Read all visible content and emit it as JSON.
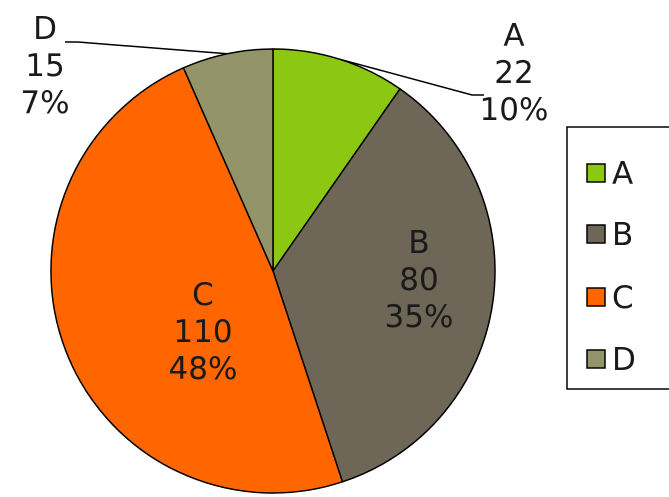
{
  "chart_data": {
    "type": "pie",
    "categories": [
      "A",
      "B",
      "C",
      "D"
    ],
    "values": [
      22,
      80,
      110,
      15
    ],
    "percent_labels": [
      "10%",
      "35%",
      "48%",
      "7%"
    ],
    "colors": [
      "#8CC714",
      "#6E6657",
      "#FF6600",
      "#94946A"
    ],
    "legend": {
      "placement": "right",
      "entries": [
        "A",
        "B",
        "C",
        "D"
      ]
    },
    "start_angle_deg": 0,
    "direction": "clockwise"
  }
}
